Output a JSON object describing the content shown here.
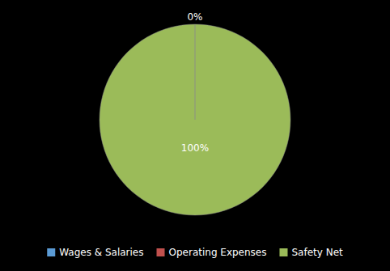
{
  "chart_data": {
    "type": "pie",
    "categories": [
      "Wages & Salaries",
      "Operating Expenses",
      "Safety Net"
    ],
    "values": [
      0.001,
      0.001,
      99.998
    ],
    "colors": [
      "#5b9bd5",
      "#c0504d",
      "#9bbb59"
    ],
    "annotations": [
      "0%",
      "100%"
    ],
    "legend": "bottom"
  }
}
